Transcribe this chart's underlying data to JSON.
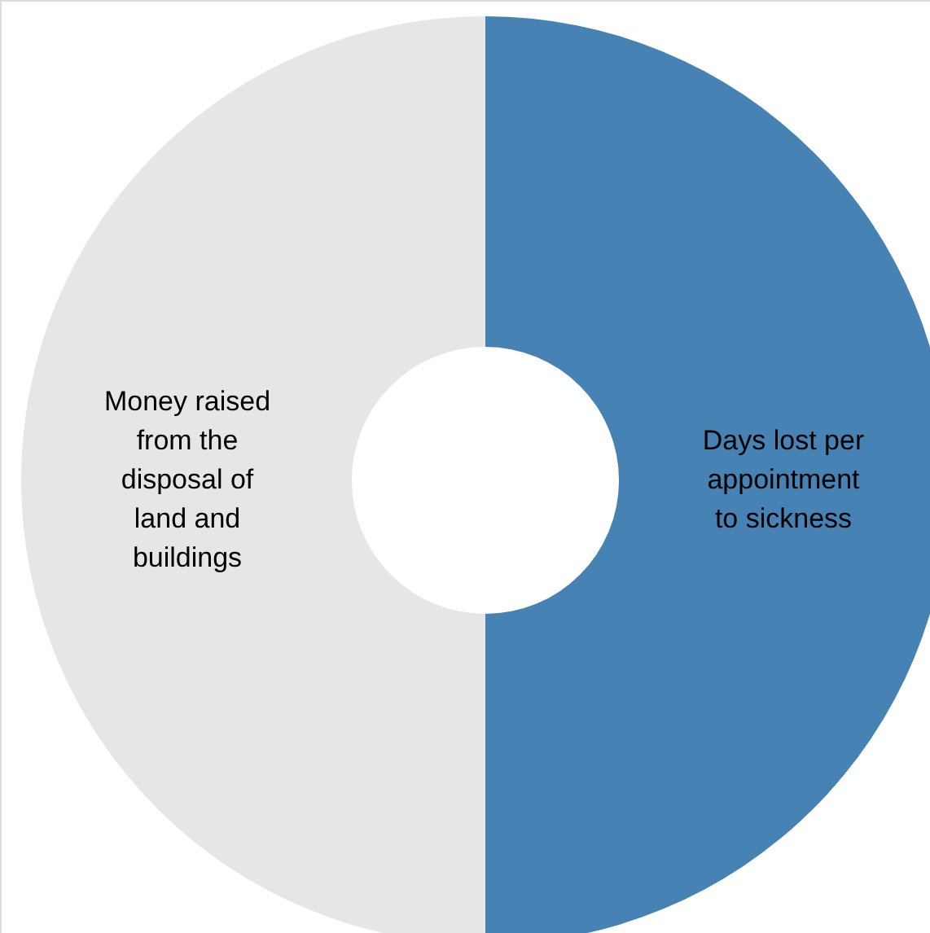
{
  "chart_data": {
    "type": "donut",
    "categories": [
      "Days lost per appointment to sickness",
      "Money raised from the disposal of land and buildings"
    ],
    "values": [
      50,
      50
    ],
    "colors": [
      "#4682b4",
      "#e6e6e6"
    ]
  }
}
